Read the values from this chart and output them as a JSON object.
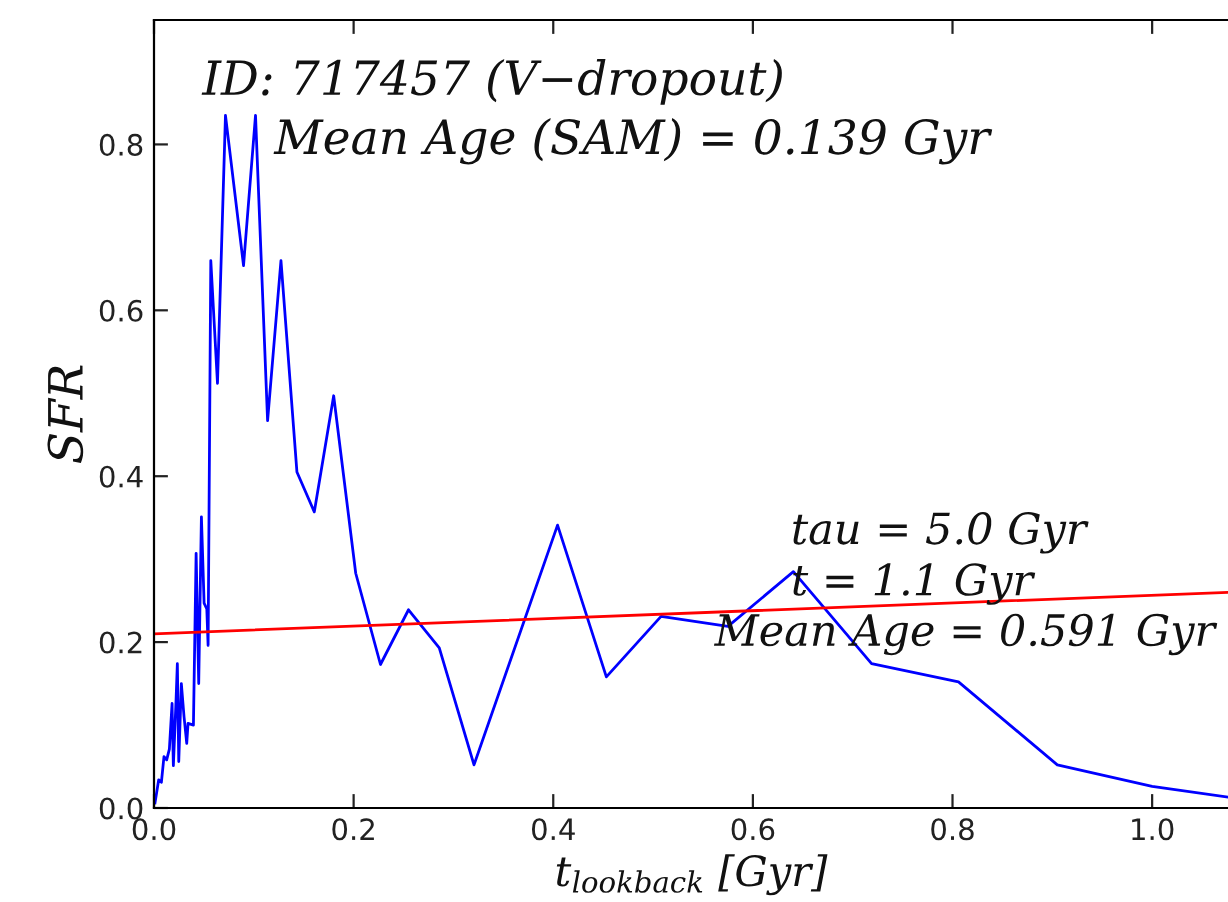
{
  "chart_data": {
    "type": "line",
    "xlabel": "t$_{lookback}$ [Gyr]",
    "ylabel": "SFR",
    "annotations": [
      "ID: 717457 (V−dropout)",
      "Mean Age (SAM) = 0.139 Gyr",
      "tau = 5.0 Gyr",
      "t = 1.1 Gyr",
      "Mean Age = 0.591 Gyr"
    ],
    "series": [
      {
        "color": "#0000ff",
        "x": [
          0.001,
          0.0047,
          0.0074,
          0.01,
          0.0127,
          0.0154,
          0.0181,
          0.0194,
          0.0221,
          0.0234,
          0.0248,
          0.0274,
          0.0301,
          0.0328,
          0.0341,
          0.0395,
          0.0422,
          0.0448,
          0.0475,
          0.0502,
          0.0529,
          0.0542,
          0.0569,
          0.0636,
          0.0716,
          0.0897,
          0.1017,
          0.1138,
          0.1272,
          0.1432,
          0.1606,
          0.18,
          0.2021,
          0.2269,
          0.255,
          0.2858,
          0.3206,
          0.4043,
          0.4532,
          0.508,
          0.575,
          0.6406,
          0.7189,
          0.806,
          0.905,
          1.0,
          1.076
        ],
        "values": [
          0.006,
          0.034,
          0.031,
          0.062,
          0.058,
          0.071,
          0.126,
          0.051,
          0.13,
          0.174,
          0.056,
          0.15,
          0.11,
          0.078,
          0.102,
          0.1,
          0.307,
          0.15,
          0.351,
          0.247,
          0.24,
          0.196,
          0.66,
          0.512,
          0.835,
          0.654,
          0.835,
          0.467,
          0.66,
          0.405,
          0.357,
          0.497,
          0.283,
          0.173,
          0.239,
          0.193,
          0.052,
          0.341,
          0.158,
          0.231,
          0.219,
          0.285,
          0.174,
          0.152,
          0.052,
          0.026,
          0.013
        ]
      },
      {
        "color": "#ff0000",
        "x": [
          0.0,
          1.076
        ],
        "values": [
          0.21,
          0.26
        ]
      }
    ],
    "xlim": [
      0.0,
      1.076
    ],
    "ylim": [
      0.0,
      0.95
    ],
    "xticks": [
      {
        "value": 0,
        "label": "0.0"
      },
      0.2,
      0.4,
      0.6,
      0.8,
      {
        "value": 1,
        "label": "1.0"
      }
    ],
    "yticks": [
      {
        "value": 0,
        "label": "0.0"
      },
      0.2,
      0.4,
      0.6,
      0.8
    ],
    "grid": false,
    "marker": "none",
    "line_style": "solid"
  }
}
